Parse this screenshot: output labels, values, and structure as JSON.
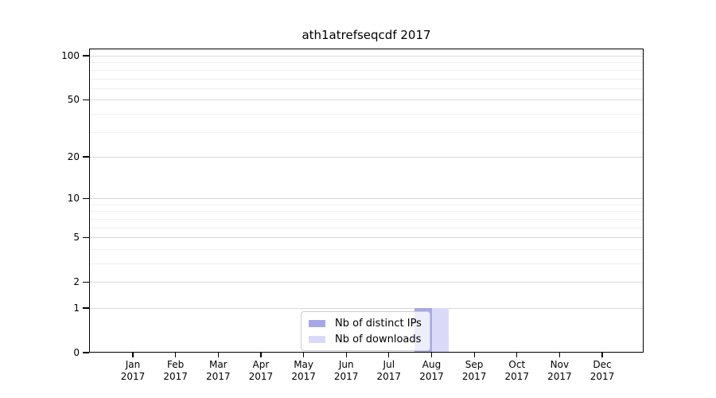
{
  "chart_data": {
    "type": "bar",
    "title": "ath1atrefseqcdf 2017",
    "months": [
      "Jan",
      "Feb",
      "Mar",
      "Apr",
      "May",
      "Jun",
      "Jul",
      "Aug",
      "Sep",
      "Oct",
      "Nov",
      "Dec"
    ],
    "year": "2017",
    "series": [
      {
        "name": "Nb of distinct IPs",
        "color": "#a8a8e8",
        "values": [
          0,
          0,
          0,
          0,
          0,
          0,
          0,
          1,
          0,
          0,
          0,
          0
        ]
      },
      {
        "name": "Nb of downloads",
        "color": "#dadaf8",
        "values": [
          0,
          0,
          0,
          0,
          0,
          0,
          0,
          1,
          0,
          0,
          0,
          0
        ]
      }
    ],
    "yticks": [
      0,
      1,
      2,
      5,
      10,
      20,
      50,
      100
    ],
    "yticks_minor": [
      3,
      4,
      6,
      7,
      8,
      9,
      30,
      40,
      60,
      70,
      80,
      90
    ],
    "scale": "log1p",
    "ylim": [
      0,
      112
    ],
    "grid": "horizontal",
    "legend_position": "bottom-center"
  },
  "colors": {
    "background": "#ffffff",
    "spine": "#000000",
    "grid_major": "#d8d8d8",
    "grid_minor": "#f0f0f0",
    "legend_border": "#cccccc",
    "text": "#000000"
  }
}
